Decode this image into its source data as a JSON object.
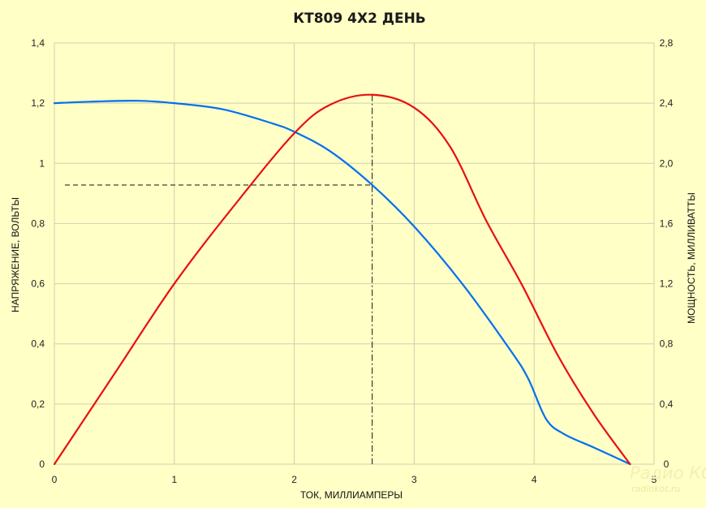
{
  "chart_data": {
    "type": "line",
    "title": "КТ809 4Х2 ДЕНЬ",
    "xlabel": "ТОК, МИЛЛИАМПЕРЫ",
    "ylabel": "НАПРЯЖЕНИЕ, ВОЛЬТЫ",
    "y2label": "МОЩНОСТЬ, МИЛЛИВАТТЫ",
    "xlim": [
      0,
      5
    ],
    "ylim": [
      0,
      1.4
    ],
    "y2lim": [
      0,
      2.8
    ],
    "x_ticks": [
      "0",
      "1",
      "2",
      "3",
      "4",
      "5"
    ],
    "y_ticks": [
      "0",
      "0,2",
      "0,4",
      "0,6",
      "0,8",
      "1",
      "1,2",
      "1,4"
    ],
    "y2_ticks": [
      "0",
      "0,4",
      "0,8",
      "1,2",
      "1,6",
      "2,0",
      "2,4",
      "2,8"
    ],
    "grid": true,
    "series": [
      {
        "axis": "left",
        "color": "#0070f0",
        "x": [
          0,
          0.3,
          0.7,
          1.0,
          1.4,
          1.8,
          2.0,
          2.3,
          2.65,
          3.0,
          3.4,
          3.8,
          3.95,
          4.1,
          4.25,
          4.5,
          4.8
        ],
        "y": [
          1.2,
          1.205,
          1.208,
          1.2,
          1.18,
          1.135,
          1.105,
          1.04,
          0.928,
          0.79,
          0.6,
          0.38,
          0.285,
          0.15,
          0.1,
          0.055,
          0.0
        ]
      },
      {
        "axis": "right",
        "color": "#e81010",
        "x": [
          0,
          0.5,
          1.0,
          1.5,
          2.0,
          2.3,
          2.65,
          3.0,
          3.3,
          3.6,
          3.9,
          4.2,
          4.5,
          4.8
        ],
        "y": [
          0,
          0.6,
          1.2,
          1.72,
          2.2,
          2.39,
          2.456,
          2.37,
          2.11,
          1.62,
          1.19,
          0.72,
          0.33,
          0.0
        ]
      }
    ],
    "annotations": {
      "optimum_x": 2.65,
      "optimum_voltage": 0.928,
      "optimum_power": 2.456
    }
  },
  "watermark": {
    "line1": "Радио КОТ",
    "line2": "radiokot.ru"
  }
}
